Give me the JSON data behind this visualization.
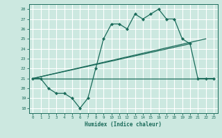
{
  "xlabel": "Humidex (Indice chaleur)",
  "bg_color": "#cce8e0",
  "line_color": "#1a6b5a",
  "grid_color": "#ffffff",
  "xlim": [
    -0.5,
    23.5
  ],
  "ylim": [
    17.5,
    28.5
  ],
  "yticks": [
    18,
    19,
    20,
    21,
    22,
    23,
    24,
    25,
    26,
    27,
    28
  ],
  "xticks": [
    0,
    1,
    2,
    3,
    4,
    5,
    6,
    7,
    8,
    9,
    10,
    11,
    12,
    13,
    14,
    15,
    16,
    17,
    18,
    19,
    20,
    21,
    22,
    23
  ],
  "line1_x": [
    0,
    1,
    2,
    3,
    4,
    5,
    6,
    7,
    8,
    9,
    10,
    11,
    12,
    13,
    14,
    15,
    16,
    17,
    18,
    19,
    20,
    21,
    22,
    23
  ],
  "line1_y": [
    21,
    21,
    20,
    19.5,
    19.5,
    19,
    18,
    19,
    22,
    25,
    26.5,
    26.5,
    26,
    27.5,
    27,
    27.5,
    28,
    27,
    27,
    25,
    24.5,
    21,
    21,
    21
  ],
  "line2_x": [
    0,
    23
  ],
  "line2_y": [
    21,
    21
  ],
  "line3_x": [
    0,
    20
  ],
  "line3_y": [
    21,
    24.5
  ],
  "line4_x": [
    0,
    22
  ],
  "line4_y": [
    21,
    25
  ]
}
